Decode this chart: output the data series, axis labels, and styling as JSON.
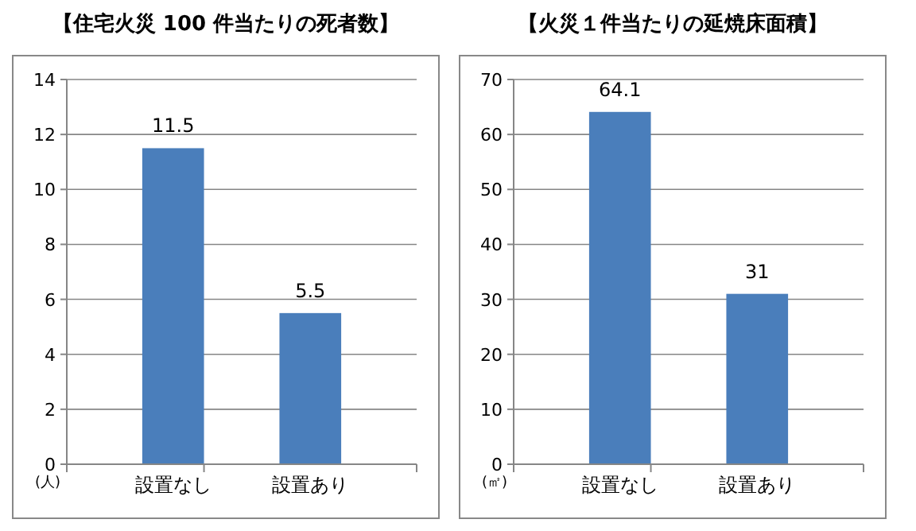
{
  "chart_data": [
    {
      "type": "bar",
      "title": "【住宅火災 100 件当たりの死者数】",
      "ylabel": "(人)",
      "categories": [
        "設置なし",
        "設置あり"
      ],
      "values": [
        11.5,
        5.5
      ],
      "color": "#4a7ebb",
      "ylim": [
        0,
        14
      ],
      "yticks": [
        0,
        2,
        4,
        6,
        8,
        10,
        12,
        14
      ],
      "grid": "y",
      "data_labels": true
    },
    {
      "type": "bar",
      "title": "【火災１件当たりの延焼床面積】",
      "ylabel": "(㎡)",
      "categories": [
        "設置なし",
        "設置あり"
      ],
      "values": [
        64.1,
        31
      ],
      "color": "#4a7ebb",
      "ylim": [
        0,
        70
      ],
      "yticks": [
        0,
        10,
        20,
        30,
        40,
        50,
        60,
        70
      ],
      "grid": "y",
      "data_labels": true
    }
  ]
}
